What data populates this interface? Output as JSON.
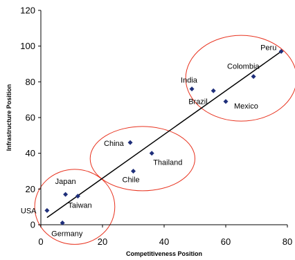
{
  "chart_data": {
    "type": "scatter",
    "title": "",
    "xlabel": "Competitiveness Position",
    "ylabel": "Infrastructure Position",
    "xlim": [
      0,
      80
    ],
    "ylim": [
      0,
      120
    ],
    "xticks": [
      0,
      20,
      40,
      60,
      80
    ],
    "yticks": [
      0,
      20,
      40,
      60,
      80,
      100,
      120
    ],
    "grid": false,
    "marker_color": "#1f2f7a",
    "trendline_color": "#000000",
    "cluster_color": "#e8321e",
    "points": [
      {
        "label": "USA",
        "x": 2,
        "y": 8
      },
      {
        "label": "Germany",
        "x": 7,
        "y": 1
      },
      {
        "label": "Japan",
        "x": 8,
        "y": 17
      },
      {
        "label": "Taiwan",
        "x": 12,
        "y": 16
      },
      {
        "label": "China",
        "x": 29,
        "y": 46
      },
      {
        "label": "Chile",
        "x": 30,
        "y": 30
      },
      {
        "label": "Thailand",
        "x": 36,
        "y": 40
      },
      {
        "label": "India",
        "x": 49,
        "y": 76
      },
      {
        "label": "Brazil",
        "x": 56,
        "y": 75
      },
      {
        "label": "Mexico",
        "x": 60,
        "y": 69
      },
      {
        "label": "Colombia",
        "x": 69,
        "y": 83
      },
      {
        "label": "Peru",
        "x": 78,
        "y": 97
      }
    ],
    "trendline": {
      "x": [
        2,
        78
      ],
      "y": [
        4,
        97
      ]
    },
    "clusters": [
      {
        "cx": 11,
        "cy": 10,
        "rx": 13,
        "ry": 21
      },
      {
        "cx": 33,
        "cy": 37,
        "rx": 17,
        "ry": 18
      },
      {
        "cx": 65,
        "cy": 82,
        "rx": 18,
        "ry": 24
      }
    ]
  }
}
